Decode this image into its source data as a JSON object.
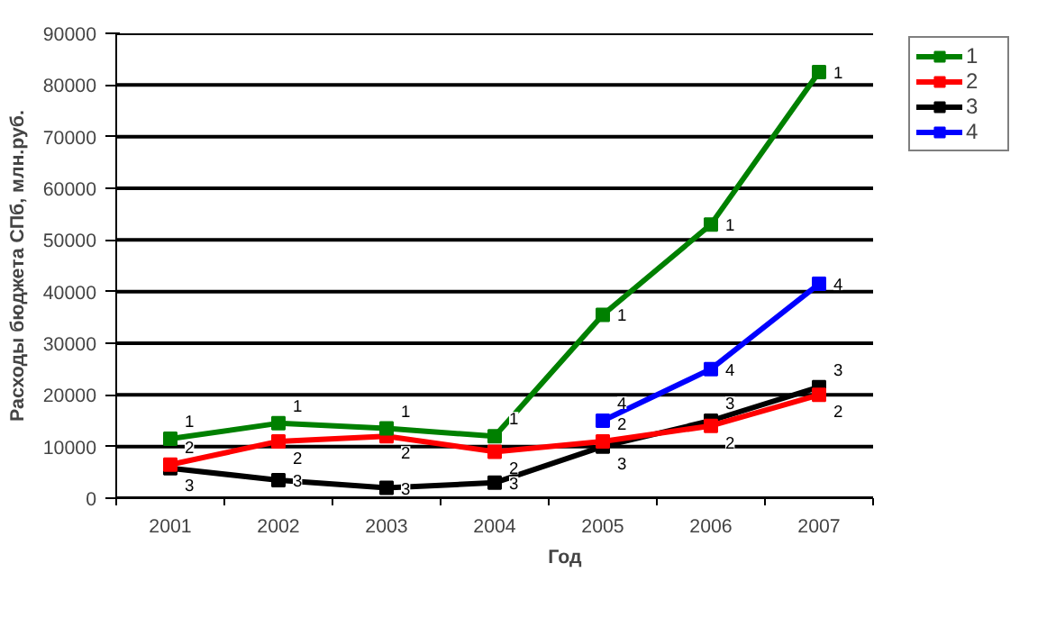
{
  "chart_data": {
    "type": "line",
    "xlabel": "Год",
    "ylabel": "Расходы бюджета СПб, млн.руб.",
    "categories": [
      "2001",
      "2002",
      "2003",
      "2004",
      "2005",
      "2006",
      "2007"
    ],
    "series": [
      {
        "name": "1",
        "color": "#008000",
        "values": [
          11500,
          14500,
          13500,
          12000,
          35500,
          53000,
          82500
        ]
      },
      {
        "name": "2",
        "color": "#ff0000",
        "values": [
          6500,
          11000,
          12000,
          9000,
          11000,
          14000,
          20000
        ]
      },
      {
        "name": "3",
        "color": "#000000",
        "values": [
          5800,
          3500,
          2000,
          3000,
          10000,
          15000,
          21500
        ]
      },
      {
        "name": "4",
        "color": "#0000ff",
        "values": [
          null,
          null,
          null,
          null,
          15000,
          25000,
          41500
        ]
      }
    ],
    "annotations": [
      {
        "text": "1",
        "x": "2001",
        "y": 11500
      },
      {
        "text": "1",
        "x": "2002",
        "y": 14500
      },
      {
        "text": "1",
        "x": "2003",
        "y": 13500
      },
      {
        "text": "1",
        "x": "2004",
        "y": 12000
      },
      {
        "text": "1",
        "x": "2005",
        "y": 35500
      },
      {
        "text": "1",
        "x": "2006",
        "y": 53000
      },
      {
        "text": "1",
        "x": "2007",
        "y": 82500
      },
      {
        "text": "2",
        "x": "2001",
        "y": 6500
      },
      {
        "text": "2",
        "x": "2002",
        "y": 11000
      },
      {
        "text": "2",
        "x": "2003",
        "y": 12000
      },
      {
        "text": "2",
        "x": "2004",
        "y": 9000
      },
      {
        "text": "2",
        "x": "2005",
        "y": 11000
      },
      {
        "text": "2",
        "x": "2006",
        "y": 14000
      },
      {
        "text": "2",
        "x": "2007",
        "y": 20000
      },
      {
        "text": "3",
        "x": "2001",
        "y": 5800
      },
      {
        "text": "3",
        "x": "2002",
        "y": 3500
      },
      {
        "text": "3",
        "x": "2003",
        "y": 2000
      },
      {
        "text": "3",
        "x": "2004",
        "y": 3000
      },
      {
        "text": "3",
        "x": "2005",
        "y": 10000
      },
      {
        "text": "3",
        "x": "2006",
        "y": 15000
      },
      {
        "text": "3",
        "x": "2007",
        "y": 21500
      },
      {
        "text": "4",
        "x": "2005",
        "y": 15000
      },
      {
        "text": "4",
        "x": "2006",
        "y": 25000
      },
      {
        "text": "4",
        "x": "2007",
        "y": 41500
      }
    ],
    "ylim": [
      0,
      90000
    ],
    "yticks": [
      0,
      10000,
      20000,
      30000,
      40000,
      50000,
      60000,
      70000,
      80000,
      90000
    ],
    "grid": "y",
    "legend": "top right",
    "marker": "square",
    "line_style": "solid"
  }
}
